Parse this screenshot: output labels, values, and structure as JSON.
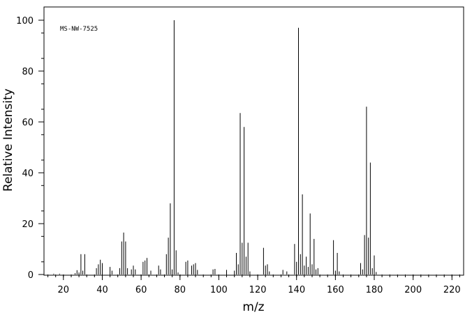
{
  "chart_data": {
    "type": "bar",
    "annotation": "MS-NW-7525",
    "xlabel": "m/z",
    "ylabel": "Relative Intensity",
    "xlim": [
      10,
      226
    ],
    "ylim": [
      0,
      100
    ],
    "x_major_ticks": [
      20,
      40,
      60,
      80,
      100,
      120,
      140,
      160,
      180,
      200,
      220
    ],
    "y_major_ticks": [
      0,
      20,
      40,
      60,
      80,
      100
    ],
    "grid": false,
    "peaks": [
      [
        15,
        0.3
      ],
      [
        18,
        0.3
      ],
      [
        26,
        0.5
      ],
      [
        27,
        1.7
      ],
      [
        28,
        0.8
      ],
      [
        29,
        8
      ],
      [
        30,
        1.5
      ],
      [
        31,
        8
      ],
      [
        37,
        2.5
      ],
      [
        38,
        4
      ],
      [
        39,
        5.8
      ],
      [
        40,
        4.5
      ],
      [
        44,
        3
      ],
      [
        45,
        1.5
      ],
      [
        49,
        2.5
      ],
      [
        50,
        13
      ],
      [
        51,
        16.5
      ],
      [
        52,
        13
      ],
      [
        53,
        2.5
      ],
      [
        55,
        2
      ],
      [
        56,
        3.5
      ],
      [
        57,
        2
      ],
      [
        61,
        5
      ],
      [
        62,
        5.5
      ],
      [
        63,
        6.5
      ],
      [
        65,
        1.5
      ],
      [
        69,
        3.5
      ],
      [
        70,
        2
      ],
      [
        73,
        8
      ],
      [
        74,
        14.5
      ],
      [
        75,
        28
      ],
      [
        76,
        2
      ],
      [
        77,
        100
      ],
      [
        78,
        9.5
      ],
      [
        79,
        0.8
      ],
      [
        83,
        5
      ],
      [
        84,
        5.5
      ],
      [
        86,
        3.5
      ],
      [
        87,
        4
      ],
      [
        88,
        4.5
      ],
      [
        89,
        1.8
      ],
      [
        97,
        2
      ],
      [
        98,
        2.2
      ],
      [
        104,
        1.8
      ],
      [
        108,
        1.5
      ],
      [
        109,
        8.5
      ],
      [
        110,
        4
      ],
      [
        111,
        63.5
      ],
      [
        112,
        12.5
      ],
      [
        113,
        58
      ],
      [
        114,
        7
      ],
      [
        115,
        12.5
      ],
      [
        116,
        1.2
      ],
      [
        123,
        10.5
      ],
      [
        124,
        3.5
      ],
      [
        125,
        4
      ],
      [
        126,
        1.2
      ],
      [
        133,
        1.8
      ],
      [
        135,
        1.2
      ],
      [
        139,
        12
      ],
      [
        140,
        5
      ],
      [
        141,
        97
      ],
      [
        142,
        8
      ],
      [
        143,
        31.5
      ],
      [
        144,
        3.5
      ],
      [
        145,
        7
      ],
      [
        146,
        3
      ],
      [
        147,
        24
      ],
      [
        148,
        4
      ],
      [
        149,
        14
      ],
      [
        150,
        2
      ],
      [
        151,
        2.5
      ],
      [
        159,
        13.5
      ],
      [
        160,
        1.5
      ],
      [
        161,
        8.5
      ],
      [
        162,
        1.2
      ],
      [
        173,
        4.5
      ],
      [
        174,
        2
      ],
      [
        175,
        15.5
      ],
      [
        176,
        66
      ],
      [
        177,
        14.5
      ],
      [
        178,
        44
      ],
      [
        179,
        2.5
      ],
      [
        180,
        7.5
      ],
      [
        181,
        1
      ]
    ]
  }
}
